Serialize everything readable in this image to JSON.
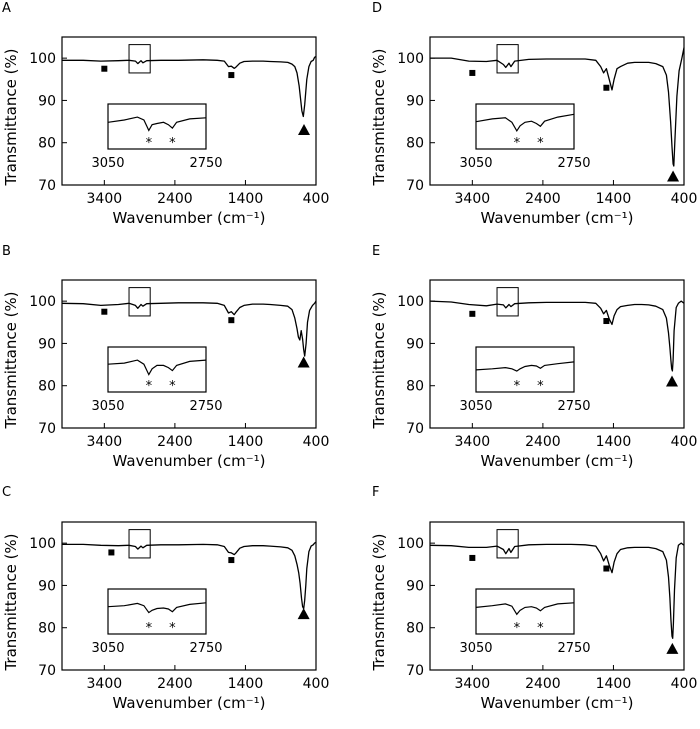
{
  "figure": {
    "description_note": null,
    "colors": {
      "line": "#000000",
      "background": "#ffffff"
    }
  },
  "chart_data": [
    {
      "panel": "A",
      "type": "line",
      "xlabel": "Wavenumber (cm⁻¹)",
      "ylabel": "Transmittance (%)",
      "xlim": [
        4000,
        400
      ],
      "ylim": [
        70,
        105
      ],
      "xticks": [
        "3400",
        "2400",
        "1400",
        "400"
      ],
      "xtick_values": [
        3400,
        2400,
        1400,
        400
      ],
      "yticks": [
        "70",
        "80",
        "90",
        "100"
      ],
      "ytick_values": [
        70,
        80,
        90,
        100
      ],
      "grid": false,
      "series": [
        {
          "name": "spectrum",
          "x": [
            4000,
            3700,
            3450,
            3200,
            3050,
            2960,
            2925,
            2880,
            2853,
            2800,
            2600,
            2350,
            2000,
            1800,
            1700,
            1640,
            1600,
            1560,
            1540,
            1480,
            1420,
            1300,
            1150,
            1050,
            900,
            800,
            740,
            700,
            670,
            640,
            620,
            600,
            580,
            560,
            530,
            500,
            470,
            440,
            420,
            400
          ],
          "y": [
            99.5,
            99.5,
            99.3,
            99.4,
            99.5,
            99.3,
            98.7,
            99.4,
            98.9,
            99.4,
            99.5,
            99.5,
            99.6,
            99.5,
            99.3,
            98.0,
            98.1,
            97.6,
            97.8,
            98.8,
            99.2,
            99.3,
            99.3,
            99.2,
            99.1,
            99.0,
            98.6,
            98.0,
            96.5,
            93.5,
            90.5,
            87.5,
            86.2,
            89.0,
            95.0,
            98.0,
            99.2,
            99.5,
            100.2,
            100.4
          ]
        }
      ],
      "markers": [
        {
          "shape": "square",
          "x": 3400,
          "y": 97.5
        },
        {
          "shape": "square",
          "x": 1600,
          "y": 96.0
        },
        {
          "shape": "triangle",
          "x": 570,
          "y": 83.0
        }
      ],
      "inset": {
        "x_left_label": "3050",
        "x_right_label": "2750",
        "xlim": [
          3050,
          2750
        ],
        "annotation": "*",
        "x": [
          3050,
          3000,
          2960,
          2940,
          2925,
          2915,
          2900,
          2880,
          2865,
          2853,
          2840,
          2800,
          2750
        ],
        "y": [
          0.45,
          0.35,
          0.22,
          0.35,
          0.8,
          0.55,
          0.5,
          0.45,
          0.55,
          0.7,
          0.45,
          0.3,
          0.25
        ],
        "star_x": [
          2925,
          2853
        ]
      }
    },
    {
      "panel": "D",
      "type": "line",
      "xlabel": "Wavenumber (cm⁻¹)",
      "ylabel": "Transmittance (%)",
      "xlim": [
        4000,
        400
      ],
      "ylim": [
        70,
        105
      ],
      "xticks": [
        "3400",
        "2400",
        "1400",
        "400"
      ],
      "xtick_values": [
        3400,
        2400,
        1400,
        400
      ],
      "yticks": [
        "70",
        "80",
        "90",
        "100"
      ],
      "ytick_values": [
        70,
        80,
        90,
        100
      ],
      "grid": false,
      "series": [
        {
          "name": "spectrum",
          "x": [
            4000,
            3700,
            3450,
            3200,
            3050,
            2960,
            2925,
            2880,
            2853,
            2800,
            2600,
            2350,
            2000,
            1800,
            1650,
            1580,
            1540,
            1500,
            1460,
            1420,
            1390,
            1350,
            1300,
            1200,
            1100,
            1000,
            900,
            800,
            700,
            650,
            620,
            590,
            570,
            555,
            545,
            530,
            500,
            470,
            430,
            400
          ],
          "y": [
            100.0,
            100.0,
            99.3,
            99.2,
            99.5,
            98.5,
            97.8,
            98.8,
            98.0,
            99.3,
            99.7,
            99.8,
            99.8,
            99.8,
            99.5,
            98.0,
            96.5,
            97.5,
            95.0,
            92.5,
            95.0,
            97.5,
            98.0,
            98.8,
            99.0,
            99.0,
            99.0,
            98.7,
            98.0,
            96.0,
            92.0,
            85.0,
            79.0,
            75.0,
            74.5,
            80.0,
            91.0,
            97.0,
            100.0,
            102.5
          ]
        }
      ],
      "markers": [
        {
          "shape": "square",
          "x": 3400,
          "y": 96.5
        },
        {
          "shape": "square",
          "x": 1500,
          "y": 93.0
        },
        {
          "shape": "triangle",
          "x": 555,
          "y": 72.0
        }
      ],
      "inset": {
        "x_left_label": "3050",
        "x_right_label": "2750",
        "xlim": [
          3050,
          2750
        ],
        "annotation": "*",
        "x": [
          3050,
          3000,
          2960,
          2940,
          2925,
          2915,
          2900,
          2880,
          2865,
          2853,
          2840,
          2800,
          2750
        ],
        "y": [
          0.42,
          0.3,
          0.25,
          0.45,
          0.82,
          0.6,
          0.45,
          0.4,
          0.5,
          0.62,
          0.4,
          0.22,
          0.1
        ],
        "star_x": [
          2925,
          2853
        ]
      }
    },
    {
      "panel": "B",
      "type": "line",
      "xlabel": "Wavenumber (cm⁻¹)",
      "ylabel": "Transmittance (%)",
      "xlim": [
        4000,
        400
      ],
      "ylim": [
        70,
        105
      ],
      "xticks": [
        "3400",
        "2400",
        "1400",
        "400"
      ],
      "xtick_values": [
        3400,
        2400,
        1400,
        400
      ],
      "yticks": [
        "70",
        "80",
        "90",
        "100"
      ],
      "ytick_values": [
        70,
        80,
        90,
        100
      ],
      "grid": false,
      "series": [
        {
          "name": "spectrum",
          "x": [
            4000,
            3700,
            3450,
            3200,
            3050,
            2960,
            2925,
            2880,
            2853,
            2800,
            2600,
            2350,
            2000,
            1800,
            1700,
            1640,
            1600,
            1560,
            1540,
            1480,
            1420,
            1300,
            1150,
            1050,
            900,
            800,
            740,
            700,
            670,
            650,
            630,
            610,
            590,
            575,
            560,
            540,
            520,
            490,
            450,
            420,
            400
          ],
          "y": [
            99.5,
            99.4,
            99.0,
            99.2,
            99.5,
            99.0,
            98.3,
            99.2,
            98.8,
            99.4,
            99.5,
            99.6,
            99.6,
            99.5,
            99.0,
            97.2,
            97.5,
            96.8,
            97.3,
            98.5,
            99.0,
            99.3,
            99.3,
            99.2,
            99.0,
            98.8,
            98.0,
            96.0,
            93.5,
            91.5,
            90.8,
            93.0,
            91.0,
            88.5,
            87.0,
            90.0,
            95.0,
            97.8,
            99.0,
            99.5,
            100.0
          ]
        }
      ],
      "markers": [
        {
          "shape": "square",
          "x": 3400,
          "y": 97.5
        },
        {
          "shape": "square",
          "x": 1600,
          "y": 95.5
        },
        {
          "shape": "triangle",
          "x": 575,
          "y": 85.5
        }
      ],
      "inset": {
        "x_left_label": "3050",
        "x_right_label": "2750",
        "xlim": [
          3050,
          2750
        ],
        "annotation": "*",
        "x": [
          3050,
          3000,
          2960,
          2940,
          2925,
          2915,
          2900,
          2880,
          2865,
          2853,
          2840,
          2800,
          2750
        ],
        "y": [
          0.4,
          0.35,
          0.22,
          0.4,
          0.85,
          0.6,
          0.45,
          0.45,
          0.55,
          0.68,
          0.45,
          0.28,
          0.22
        ],
        "star_x": [
          2925,
          2853
        ]
      }
    },
    {
      "panel": "E",
      "type": "line",
      "xlabel": "Wavenumber (cm⁻¹)",
      "ylabel": "Transmittance (%)",
      "xlim": [
        4000,
        400
      ],
      "ylim": [
        70,
        105
      ],
      "xticks": [
        "3400",
        "2400",
        "1400",
        "400"
      ],
      "xtick_values": [
        3400,
        2400,
        1400,
        400
      ],
      "yticks": [
        "70",
        "80",
        "90",
        "100"
      ],
      "ytick_values": [
        70,
        80,
        90,
        100
      ],
      "grid": false,
      "series": [
        {
          "name": "spectrum",
          "x": [
            4000,
            3700,
            3450,
            3200,
            3050,
            2960,
            2925,
            2880,
            2853,
            2800,
            2600,
            2350,
            2000,
            1800,
            1650,
            1580,
            1540,
            1500,
            1460,
            1420,
            1390,
            1350,
            1300,
            1200,
            1100,
            1000,
            900,
            800,
            700,
            650,
            620,
            600,
            585,
            575,
            565,
            555,
            540,
            510,
            480,
            440,
            400
          ],
          "y": [
            100.0,
            99.8,
            99.2,
            98.9,
            99.3,
            99.1,
            98.4,
            99.2,
            98.7,
            99.4,
            99.6,
            99.7,
            99.7,
            99.7,
            99.5,
            98.3,
            97.0,
            97.8,
            95.8,
            94.5,
            96.5,
            98.0,
            98.7,
            99.0,
            99.2,
            99.2,
            99.1,
            98.8,
            98.0,
            96.0,
            92.5,
            89.0,
            86.0,
            84.0,
            83.5,
            86.0,
            93.0,
            98.5,
            99.5,
            100.0,
            99.5
          ]
        }
      ],
      "markers": [
        {
          "shape": "square",
          "x": 3400,
          "y": 97.0
        },
        {
          "shape": "square",
          "x": 1500,
          "y": 95.3
        },
        {
          "shape": "triangle",
          "x": 570,
          "y": 81.0
        }
      ],
      "inset": {
        "x_left_label": "3050",
        "x_right_label": "2750",
        "xlim": [
          3050,
          2750
        ],
        "annotation": "*",
        "x": [
          3050,
          3000,
          2960,
          2940,
          2925,
          2915,
          2900,
          2880,
          2865,
          2853,
          2840,
          2800,
          2750
        ],
        "y": [
          0.65,
          0.6,
          0.55,
          0.6,
          0.7,
          0.6,
          0.5,
          0.45,
          0.48,
          0.58,
          0.45,
          0.38,
          0.3
        ],
        "star_x": [
          2925,
          2853
        ]
      }
    },
    {
      "panel": "C",
      "type": "line",
      "xlabel": "Wavenumber (cm⁻¹)",
      "ylabel": "Transmittance (%)",
      "xlim": [
        4000,
        400
      ],
      "ylim": [
        70,
        105
      ],
      "xticks": [
        "3400",
        "2400",
        "1400",
        "400"
      ],
      "xtick_values": [
        3400,
        2400,
        1400,
        400
      ],
      "yticks": [
        "70",
        "80",
        "90",
        "100"
      ],
      "ytick_values": [
        70,
        80,
        90,
        100
      ],
      "grid": false,
      "series": [
        {
          "name": "spectrum",
          "x": [
            4000,
            3700,
            3450,
            3200,
            3050,
            2960,
            2925,
            2880,
            2853,
            2800,
            2600,
            2350,
            2000,
            1800,
            1700,
            1640,
            1600,
            1560,
            1540,
            1480,
            1420,
            1300,
            1150,
            1050,
            900,
            800,
            740,
            700,
            670,
            645,
            625,
            605,
            590,
            575,
            560,
            545,
            530,
            500,
            470,
            440,
            420,
            400
          ],
          "y": [
            99.7,
            99.7,
            99.5,
            99.4,
            99.5,
            99.2,
            98.6,
            99.3,
            98.9,
            99.5,
            99.6,
            99.6,
            99.7,
            99.6,
            99.2,
            97.8,
            97.7,
            97.3,
            97.6,
            98.8,
            99.2,
            99.4,
            99.4,
            99.3,
            99.1,
            98.9,
            98.3,
            97.0,
            95.0,
            93.0,
            90.5,
            87.0,
            85.0,
            84.5,
            86.5,
            90.0,
            94.0,
            98.0,
            99.3,
            99.6,
            100.0,
            100.2
          ]
        }
      ],
      "markers": [
        {
          "shape": "square",
          "x": 3300,
          "y": 97.8
        },
        {
          "shape": "square",
          "x": 1600,
          "y": 96.0
        },
        {
          "shape": "triangle",
          "x": 575,
          "y": 83.2
        }
      ],
      "inset": {
        "x_left_label": "3050",
        "x_right_label": "2750",
        "xlim": [
          3050,
          2750
        ],
        "annotation": "*",
        "x": [
          3050,
          3000,
          2960,
          2940,
          2925,
          2915,
          2900,
          2880,
          2865,
          2853,
          2840,
          2800,
          2750
        ],
        "y": [
          0.42,
          0.38,
          0.28,
          0.38,
          0.68,
          0.58,
          0.5,
          0.48,
          0.52,
          0.64,
          0.45,
          0.32,
          0.25
        ],
        "star_x": [
          2925,
          2853
        ]
      }
    },
    {
      "panel": "F",
      "type": "line",
      "xlabel": "Wavenumber (cm⁻¹)",
      "ylabel": "Transmittance (%)",
      "xlim": [
        4000,
        400
      ],
      "ylim": [
        70,
        105
      ],
      "xticks": [
        "3400",
        "2400",
        "1400",
        "400"
      ],
      "xtick_values": [
        3400,
        2400,
        1400,
        400
      ],
      "yticks": [
        "70",
        "80",
        "90",
        "100"
      ],
      "ytick_values": [
        70,
        80,
        90,
        100
      ],
      "grid": false,
      "series": [
        {
          "name": "spectrum",
          "x": [
            4000,
            3700,
            3450,
            3200,
            3050,
            2960,
            2925,
            2880,
            2853,
            2800,
            2600,
            2350,
            2000,
            1800,
            1650,
            1580,
            1540,
            1500,
            1460,
            1420,
            1390,
            1350,
            1300,
            1200,
            1100,
            1000,
            900,
            800,
            700,
            650,
            620,
            600,
            585,
            570,
            560,
            550,
            535,
            510,
            480,
            440,
            400
          ],
          "y": [
            99.5,
            99.4,
            99.0,
            99.0,
            99.3,
            98.5,
            97.5,
            98.7,
            97.8,
            99.2,
            99.6,
            99.7,
            99.7,
            99.6,
            99.3,
            97.5,
            95.8,
            97.0,
            94.8,
            93.0,
            95.5,
            97.5,
            98.5,
            98.9,
            99.0,
            99.0,
            99.0,
            98.7,
            98.0,
            96.0,
            92.0,
            87.0,
            82.0,
            78.0,
            77.5,
            81.0,
            89.0,
            96.5,
            99.5,
            100.0,
            99.5
          ]
        }
      ],
      "markers": [
        {
          "shape": "square",
          "x": 3400,
          "y": 96.5
        },
        {
          "shape": "square",
          "x": 1500,
          "y": 94.0
        },
        {
          "shape": "triangle",
          "x": 565,
          "y": 75.0
        }
      ],
      "inset": {
        "x_left_label": "3050",
        "x_right_label": "2750",
        "xlim": [
          3050,
          2750
        ],
        "annotation": "*",
        "x": [
          3050,
          3000,
          2960,
          2940,
          2925,
          2915,
          2900,
          2880,
          2865,
          2853,
          2840,
          2800,
          2750
        ],
        "y": [
          0.45,
          0.38,
          0.3,
          0.4,
          0.75,
          0.58,
          0.45,
          0.42,
          0.48,
          0.6,
          0.45,
          0.3,
          0.25
        ],
        "star_x": [
          2925,
          2853
        ]
      }
    }
  ]
}
